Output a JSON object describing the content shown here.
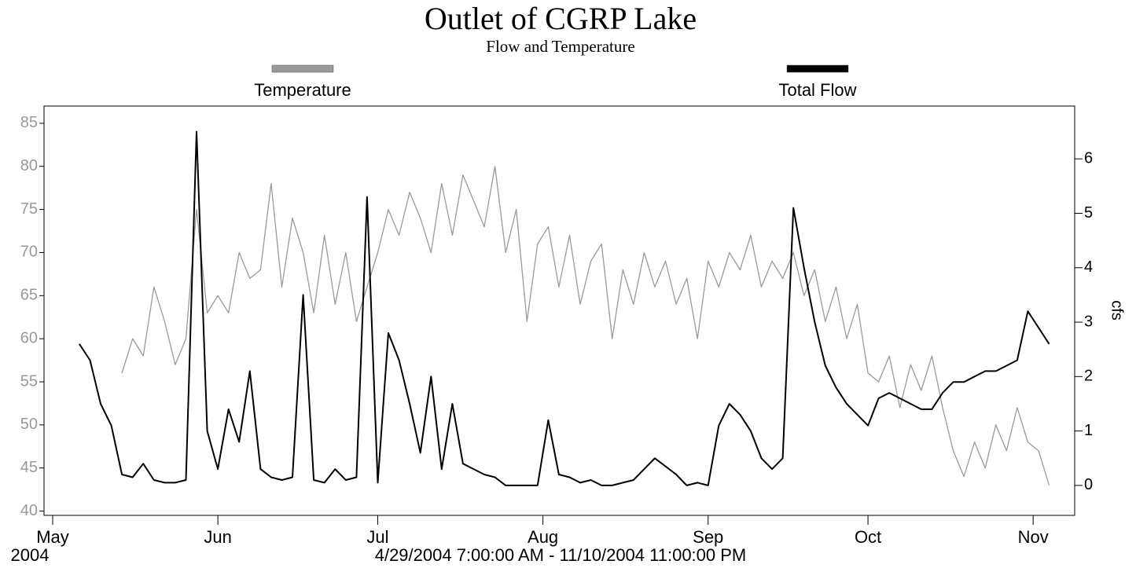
{
  "chart_data": {
    "type": "line",
    "title": "Outlet of CGRP Lake",
    "subtitle": "Flow and Temperature",
    "xlabel": "4/29/2004 7:00:00 AM - 11/10/2004 11:00:00 PM",
    "x_first_tick_year": "2004",
    "y2label": "cfs",
    "legend": "top",
    "xlim": [
      "2004-04-29T09:00",
      "2004-11-08T19:00"
    ],
    "xticks": [
      {
        "value": "2004-05-01",
        "label": "May"
      },
      {
        "value": "2004-06-01",
        "label": "Jun"
      },
      {
        "value": "2004-07-01",
        "label": "Jul"
      },
      {
        "value": "2004-08-01",
        "label": "Aug"
      },
      {
        "value": "2004-09-01",
        "label": "Sep"
      },
      {
        "value": "2004-10-01",
        "label": "Oct"
      },
      {
        "value": "2004-11-01",
        "label": "Nov"
      }
    ],
    "ylim": [
      39.5,
      87
    ],
    "yticks": [
      40,
      45,
      50,
      55,
      60,
      65,
      70,
      75,
      80,
      85
    ],
    "y2lim": [
      -0.55,
      6.97
    ],
    "y2ticks": [
      0,
      1,
      2,
      3,
      4,
      5,
      6
    ],
    "x": [
      "2004-05-06",
      "2004-05-08",
      "2004-05-10",
      "2004-05-12",
      "2004-05-14",
      "2004-05-16",
      "2004-05-18",
      "2004-05-20",
      "2004-05-22",
      "2004-05-24",
      "2004-05-26",
      "2004-05-28",
      "2004-05-30",
      "2004-06-01",
      "2004-06-03",
      "2004-06-05",
      "2004-06-07",
      "2004-06-09",
      "2004-06-11",
      "2004-06-13",
      "2004-06-15",
      "2004-06-17",
      "2004-06-19",
      "2004-06-21",
      "2004-06-23",
      "2004-06-25",
      "2004-06-27",
      "2004-06-29",
      "2004-07-01",
      "2004-07-03",
      "2004-07-05",
      "2004-07-07",
      "2004-07-09",
      "2004-07-11",
      "2004-07-13",
      "2004-07-15",
      "2004-07-17",
      "2004-07-19",
      "2004-07-21",
      "2004-07-23",
      "2004-07-25",
      "2004-07-27",
      "2004-07-29",
      "2004-07-31",
      "2004-08-02",
      "2004-08-04",
      "2004-08-06",
      "2004-08-08",
      "2004-08-10",
      "2004-08-12",
      "2004-08-14",
      "2004-08-16",
      "2004-08-18",
      "2004-08-20",
      "2004-08-22",
      "2004-08-24",
      "2004-08-26",
      "2004-08-28",
      "2004-08-30",
      "2004-09-01",
      "2004-09-03",
      "2004-09-05",
      "2004-09-07",
      "2004-09-09",
      "2004-09-11",
      "2004-09-13",
      "2004-09-15",
      "2004-09-17",
      "2004-09-19",
      "2004-09-21",
      "2004-09-23",
      "2004-09-25",
      "2004-09-27",
      "2004-09-29",
      "2004-10-01",
      "2004-10-03",
      "2004-10-05",
      "2004-10-07",
      "2004-10-09",
      "2004-10-11",
      "2004-10-13",
      "2004-10-15",
      "2004-10-17",
      "2004-10-19",
      "2004-10-21",
      "2004-10-23",
      "2004-10-25",
      "2004-10-27",
      "2004-10-29",
      "2004-10-31",
      "2004-11-02",
      "2004-11-04"
    ],
    "series": [
      {
        "name": "Temperature",
        "color": "#9a9a9a",
        "axis": "y",
        "values": [
          null,
          null,
          null,
          null,
          56,
          60,
          58,
          66,
          62,
          57,
          60,
          75,
          63,
          65,
          63,
          70,
          67,
          68,
          78,
          66,
          74,
          70,
          63,
          72,
          64,
          70,
          62,
          66,
          70,
          75,
          72,
          77,
          74,
          70,
          78,
          72,
          79,
          76,
          73,
          80,
          70,
          75,
          62,
          71,
          73,
          66,
          72,
          64,
          69,
          71,
          60,
          68,
          64,
          70,
          66,
          69,
          64,
          67,
          60,
          69,
          66,
          70,
          68,
          72,
          66,
          69,
          67,
          70,
          65,
          68,
          62,
          66,
          60,
          64,
          56,
          55,
          58,
          52,
          57,
          54,
          58,
          52,
          47,
          44,
          48,
          45,
          50,
          47,
          52,
          48,
          47,
          43
        ]
      },
      {
        "name": "Total Flow",
        "color": "#000000",
        "axis": "y2",
        "values": [
          2.6,
          2.3,
          1.5,
          1.1,
          0.2,
          0.15,
          0.4,
          0.1,
          0.05,
          0.05,
          0.1,
          6.5,
          1.0,
          0.3,
          1.4,
          0.8,
          2.1,
          0.3,
          0.15,
          0.1,
          0.15,
          3.5,
          0.1,
          0.05,
          0.3,
          0.1,
          0.15,
          5.3,
          0.05,
          2.8,
          2.3,
          1.5,
          0.6,
          2.0,
          0.3,
          1.5,
          0.4,
          0.3,
          0.2,
          0.15,
          0,
          0,
          0,
          0,
          1.2,
          0.2,
          0.15,
          0.05,
          0.1,
          0,
          0,
          0.05,
          0.1,
          0.3,
          0.5,
          0.35,
          0.2,
          0,
          0.05,
          0,
          1.1,
          1.5,
          1.3,
          1.0,
          0.5,
          0.3,
          0.5,
          5.1,
          4.0,
          3.0,
          2.2,
          1.8,
          1.5,
          1.3,
          1.1,
          1.6,
          1.7,
          1.6,
          1.5,
          1.4,
          1.4,
          1.7,
          1.9,
          1.9,
          2.0,
          2.1,
          2.1,
          2.2,
          2.3,
          3.2,
          2.9,
          2.6
        ]
      }
    ]
  }
}
